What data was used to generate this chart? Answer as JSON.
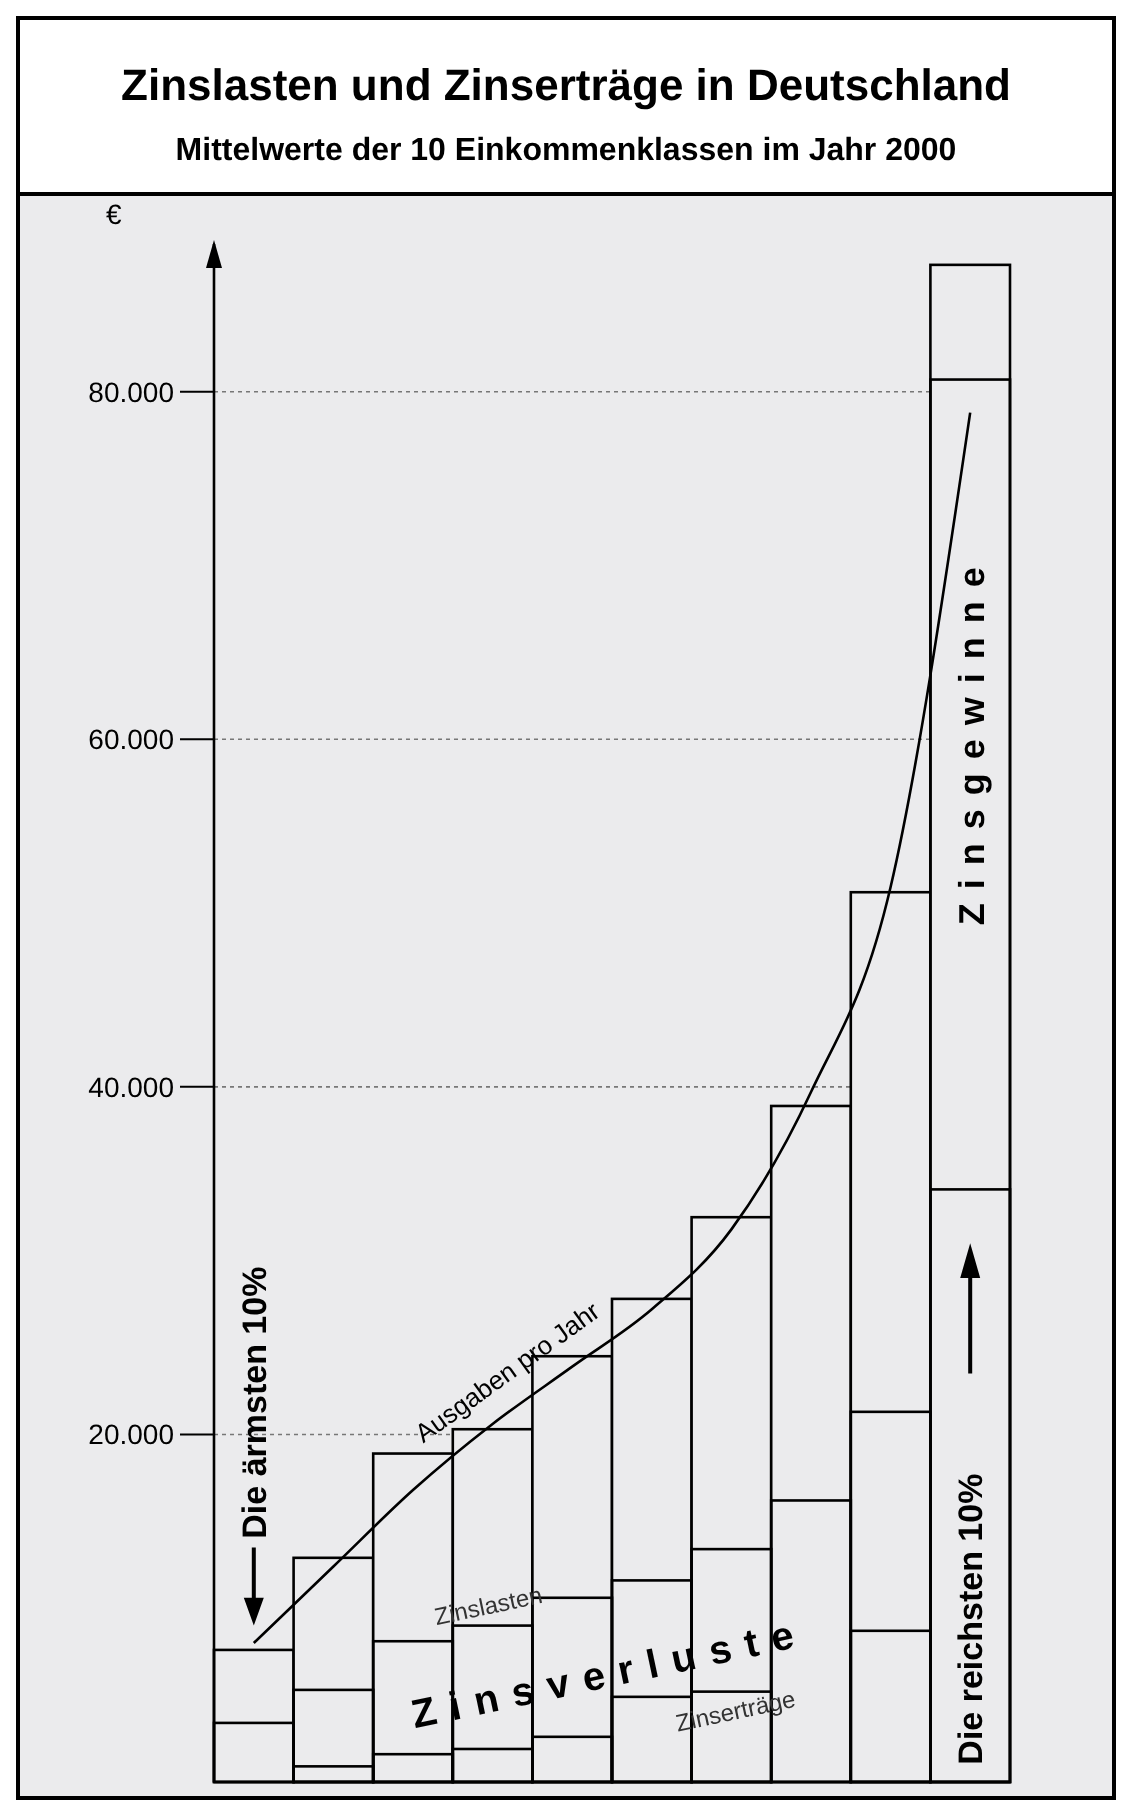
{
  "chart_data": {
    "type": "bar",
    "title": "Zinslasten und Zinserträge in Deutschland",
    "subtitle": "Mittelwerte der 10 Einkommenklassen im Jahr 2000",
    "ylabel": "€",
    "categories": [
      null,
      null,
      null,
      null,
      null,
      null,
      null,
      null,
      null,
      null
    ],
    "series": [
      {
        "color": "#000000",
        "values": [
          7600,
          12900,
          18900,
          20300,
          24500,
          27800,
          32500,
          38900,
          51200,
          87300
        ]
      },
      {
        "name": "Zinslasten",
        "color": "#000000",
        "values": [
          3400,
          5300,
          8100,
          9000,
          10600,
          11600,
          13400,
          16200,
          21300,
          34100
        ]
      },
      {
        "name": "Zinserträge",
        "color": "#000000",
        "values": [
          null,
          900,
          1600,
          1900,
          2600,
          4900,
          5200,
          null,
          8700,
          80700
        ]
      },
      {
        "type": "line",
        "name": "Ausgaben pro Jahr",
        "color": "#000000",
        "values": [
          8000,
          12400,
          16800,
          20600,
          23900,
          27200,
          31800,
          39700,
          51500,
          78800
        ]
      }
    ],
    "ylim": [
      0,
      88500
    ],
    "yticks": [
      {
        "value": 20000,
        "label": "20.000"
      },
      {
        "value": 40000,
        "label": "40.000"
      },
      {
        "value": 60000,
        "label": "60.000"
      },
      {
        "value": 80000,
        "label": "80.000"
      }
    ],
    "grid": "y",
    "marker": "none",
    "line_style": "solid",
    "annotations": [
      "Die ärmsten 10%",
      "Die reichsten 10%",
      "Zinsverluste",
      "Zinsgewinne"
    ]
  }
}
